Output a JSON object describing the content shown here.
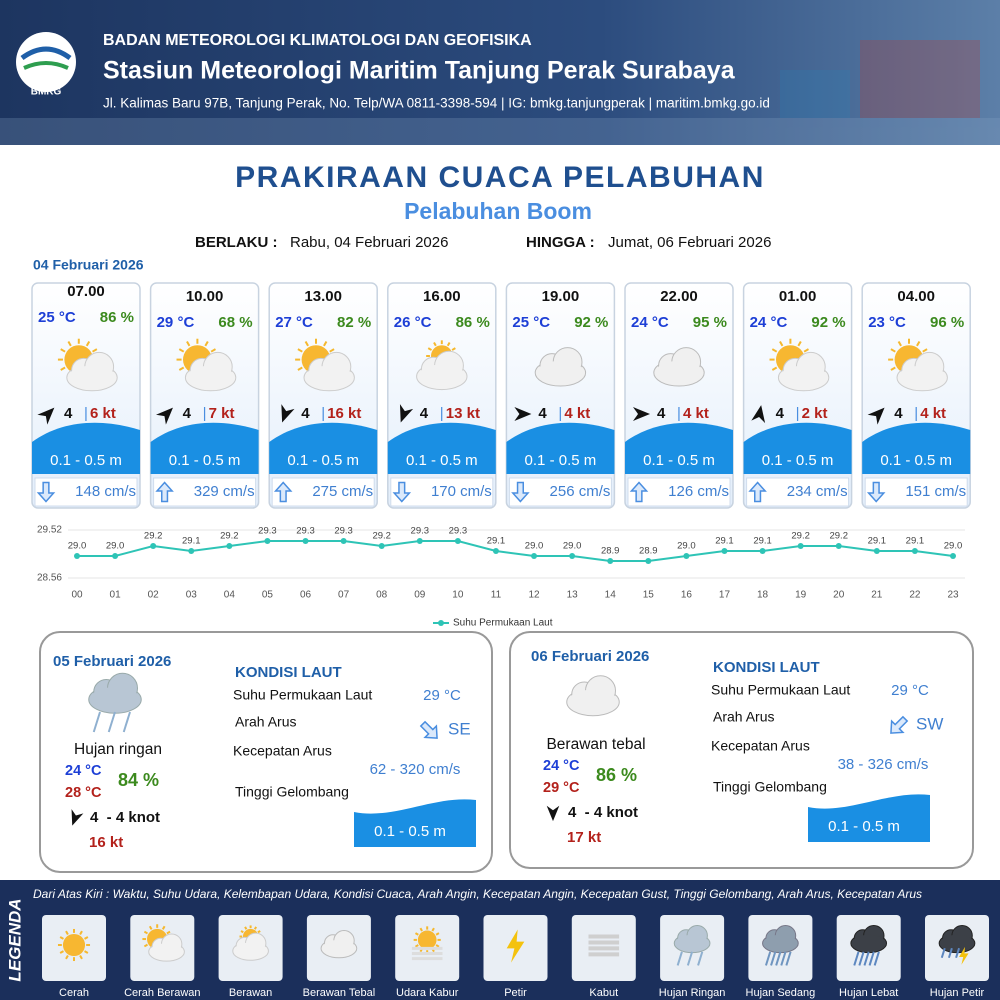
{
  "header": {
    "logo": "BMKG",
    "agency": "BADAN METEOROLOGI KLIMATOLOGI DAN GEOFISIKA",
    "station": "Stasiun Meteorologi Maritim Tanjung Perak Surabaya",
    "contact": "Jl. Kalimas Baru 97B, Tanjung Perak, No. Telp/WA 0811-3398-594 | IG: bmkg.tanjungperak | maritim.bmkg.go.id"
  },
  "title": "PRAKIRAAN CUACA PELABUHAN",
  "subtitle": "Pelabuhan Boom",
  "validity": {
    "from_label": "BERLAKU :",
    "from": "Rabu, 04 Februari 2026",
    "to_label": "HINGGA :",
    "to": "Jumat, 06 Februari 2026"
  },
  "today": {
    "date": "04 Februari 2026",
    "slots": [
      {
        "time": "07.00",
        "temp": "25 °C",
        "humidity": "86 %",
        "wind": "4",
        "gust": "6 kt",
        "wave": "0.1 - 0.5 m",
        "current": "148 cm/s"
      },
      {
        "time": "10.00",
        "temp": "29 °C",
        "humidity": "68 %",
        "wind": "4",
        "gust": "7 kt",
        "wave": "0.1 - 0.5 m",
        "current": "329 cm/s"
      },
      {
        "time": "13.00",
        "temp": "27 °C",
        "humidity": "82 %",
        "wind": "4",
        "gust": "16 kt",
        "wave": "0.1 - 0.5 m",
        "current": "275 cm/s"
      },
      {
        "time": "16.00",
        "temp": "26 °C",
        "humidity": "86 %",
        "wind": "4",
        "gust": "13 kt",
        "wave": "0.1 - 0.5 m",
        "current": "170 cm/s"
      },
      {
        "time": "19.00",
        "temp": "25 °C",
        "humidity": "92 %",
        "wind": "4",
        "gust": "4 kt",
        "wave": "0.1 - 0.5 m",
        "current": "256 cm/s"
      },
      {
        "time": "22.00",
        "temp": "24 °C",
        "humidity": "95 %",
        "wind": "4",
        "gust": "4 kt",
        "wave": "0.1 - 0.5 m",
        "current": "126 cm/s"
      },
      {
        "time": "01.00",
        "temp": "24 °C",
        "humidity": "92 %",
        "wind": "4",
        "gust": "2 kt",
        "wave": "0.1 - 0.5 m",
        "current": "234 cm/s"
      },
      {
        "time": "04.00",
        "temp": "23 °C",
        "humidity": "96 %",
        "wind": "4",
        "gust": "4 kt",
        "wave": "0.1 - 0.5 m",
        "current": "151 cm/s"
      }
    ]
  },
  "chart_data": {
    "type": "line",
    "categories": [
      "00",
      "01",
      "02",
      "03",
      "04",
      "05",
      "06",
      "07",
      "08",
      "09",
      "10",
      "11",
      "12",
      "13",
      "14",
      "15",
      "16",
      "17",
      "18",
      "19",
      "20",
      "21",
      "22",
      "23"
    ],
    "series": [
      {
        "name": "Suhu Permukaan Laut",
        "color": "#2ec4b6",
        "values": [
          29.0,
          29.0,
          29.2,
          29.1,
          29.2,
          29.3,
          29.3,
          29.3,
          29.2,
          29.3,
          29.3,
          29.1,
          29.0,
          29.0,
          28.9,
          28.9,
          29.0,
          29.1,
          29.1,
          29.2,
          29.2,
          29.1,
          29.1,
          29.0
        ],
        "value_labels": [
          "29.0",
          "29.0",
          "29.2",
          "29.1",
          "29.2",
          "29.3",
          "29.3",
          "29.3",
          "29.2",
          "29.3",
          "29.3",
          "29.1",
          "29.0",
          "29.0",
          "28.9",
          "28.9",
          "29.0",
          "29.1",
          "29.1",
          "29.2",
          "29.2",
          "29.1",
          "29.1",
          "29.0"
        ]
      }
    ],
    "ylim": [
      28.56,
      29.52
    ],
    "yticks": [
      28.56,
      29.52
    ],
    "grid": true,
    "legend": "bottom"
  },
  "days": [
    {
      "date": "05 Februari 2026",
      "weather": "Hujan ringan",
      "temp_min": "24 °C",
      "temp_max": "28 °C",
      "humidity": "84 %",
      "wind": "4  - 4 knot",
      "gust": "16 kt",
      "sea": {
        "heading": "KONDISI LAUT",
        "sst_label": "Suhu Permukaan Laut",
        "sst": "29 °C",
        "direction_label": "Arah Arus",
        "direction": "SE",
        "speed_label": "Kecepatan Arus",
        "speed": "62 - 320 cm/s",
        "wave_label": "Tinggi Gelombang",
        "wave": "0.1 - 0.5 m"
      }
    },
    {
      "date": "06 Februari 2026",
      "weather": "Berawan tebal",
      "temp_min": "24 °C",
      "temp_max": "29 °C",
      "humidity": "86 %",
      "wind": "4  - 4 knot",
      "gust": "17 kt",
      "sea": {
        "heading": "KONDISI LAUT",
        "sst_label": "Suhu Permukaan Laut",
        "sst": "29 °C",
        "direction_label": "Arah Arus",
        "direction": "SW",
        "speed_label": "Kecepatan Arus",
        "speed": "38 - 326 cm/s",
        "wave_label": "Tinggi Gelombang",
        "wave": "0.1 - 0.5 m"
      }
    }
  ],
  "legend": {
    "title": "LEGENDA",
    "description": "Dari Atas Kiri : Waktu, Suhu Udara, Kelembapan Udara, Kondisi Cuaca, Arah Angin, Kecepatan Angin, Kecepatan Gust, Tinggi Gelombang, Arah Arus, Kecepatan Arus",
    "items": [
      "Cerah",
      "Cerah Berawan",
      "Berawan",
      "Berawan Tebal",
      "Udara Kabur",
      "Petir",
      "Kabut",
      "Hujan Ringan",
      "Hujan Sedang",
      "Hujan Lebat",
      "Hujan Petir"
    ]
  }
}
